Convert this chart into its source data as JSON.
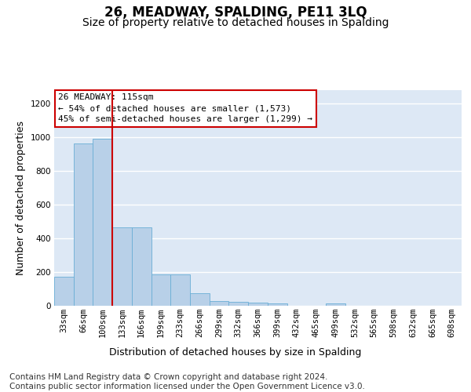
{
  "title": "26, MEADWAY, SPALDING, PE11 3LQ",
  "subtitle": "Size of property relative to detached houses in Spalding",
  "xlabel": "Distribution of detached houses by size in Spalding",
  "ylabel": "Number of detached properties",
  "categories": [
    "33sqm",
    "66sqm",
    "100sqm",
    "133sqm",
    "166sqm",
    "199sqm",
    "233sqm",
    "266sqm",
    "299sqm",
    "332sqm",
    "366sqm",
    "399sqm",
    "432sqm",
    "465sqm",
    "499sqm",
    "532sqm",
    "565sqm",
    "598sqm",
    "632sqm",
    "665sqm",
    "698sqm"
  ],
  "values": [
    170,
    965,
    990,
    465,
    465,
    185,
    185,
    75,
    30,
    22,
    20,
    12,
    0,
    0,
    12,
    0,
    0,
    0,
    0,
    0,
    0
  ],
  "bar_color": "#b8d0e8",
  "bar_edgecolor": "#6aaed6",
  "vline_x": 2.5,
  "vline_color": "#cc0000",
  "annotation_text": "26 MEADWAY: 115sqm\n← 54% of detached houses are smaller (1,573)\n45% of semi-detached houses are larger (1,299) →",
  "annotation_box_facecolor": "white",
  "annotation_box_edgecolor": "#cc0000",
  "ylim": [
    0,
    1280
  ],
  "yticks": [
    0,
    200,
    400,
    600,
    800,
    1000,
    1200
  ],
  "background_color": "#dde8f5",
  "grid_color": "white",
  "title_fontsize": 12,
  "subtitle_fontsize": 10,
  "axis_label_fontsize": 9,
  "tick_fontsize": 7.5,
  "annotation_fontsize": 8,
  "footer_fontsize": 7.5,
  "footer_line1": "Contains HM Land Registry data © Crown copyright and database right 2024.",
  "footer_line2": "Contains public sector information licensed under the Open Government Licence v3.0."
}
